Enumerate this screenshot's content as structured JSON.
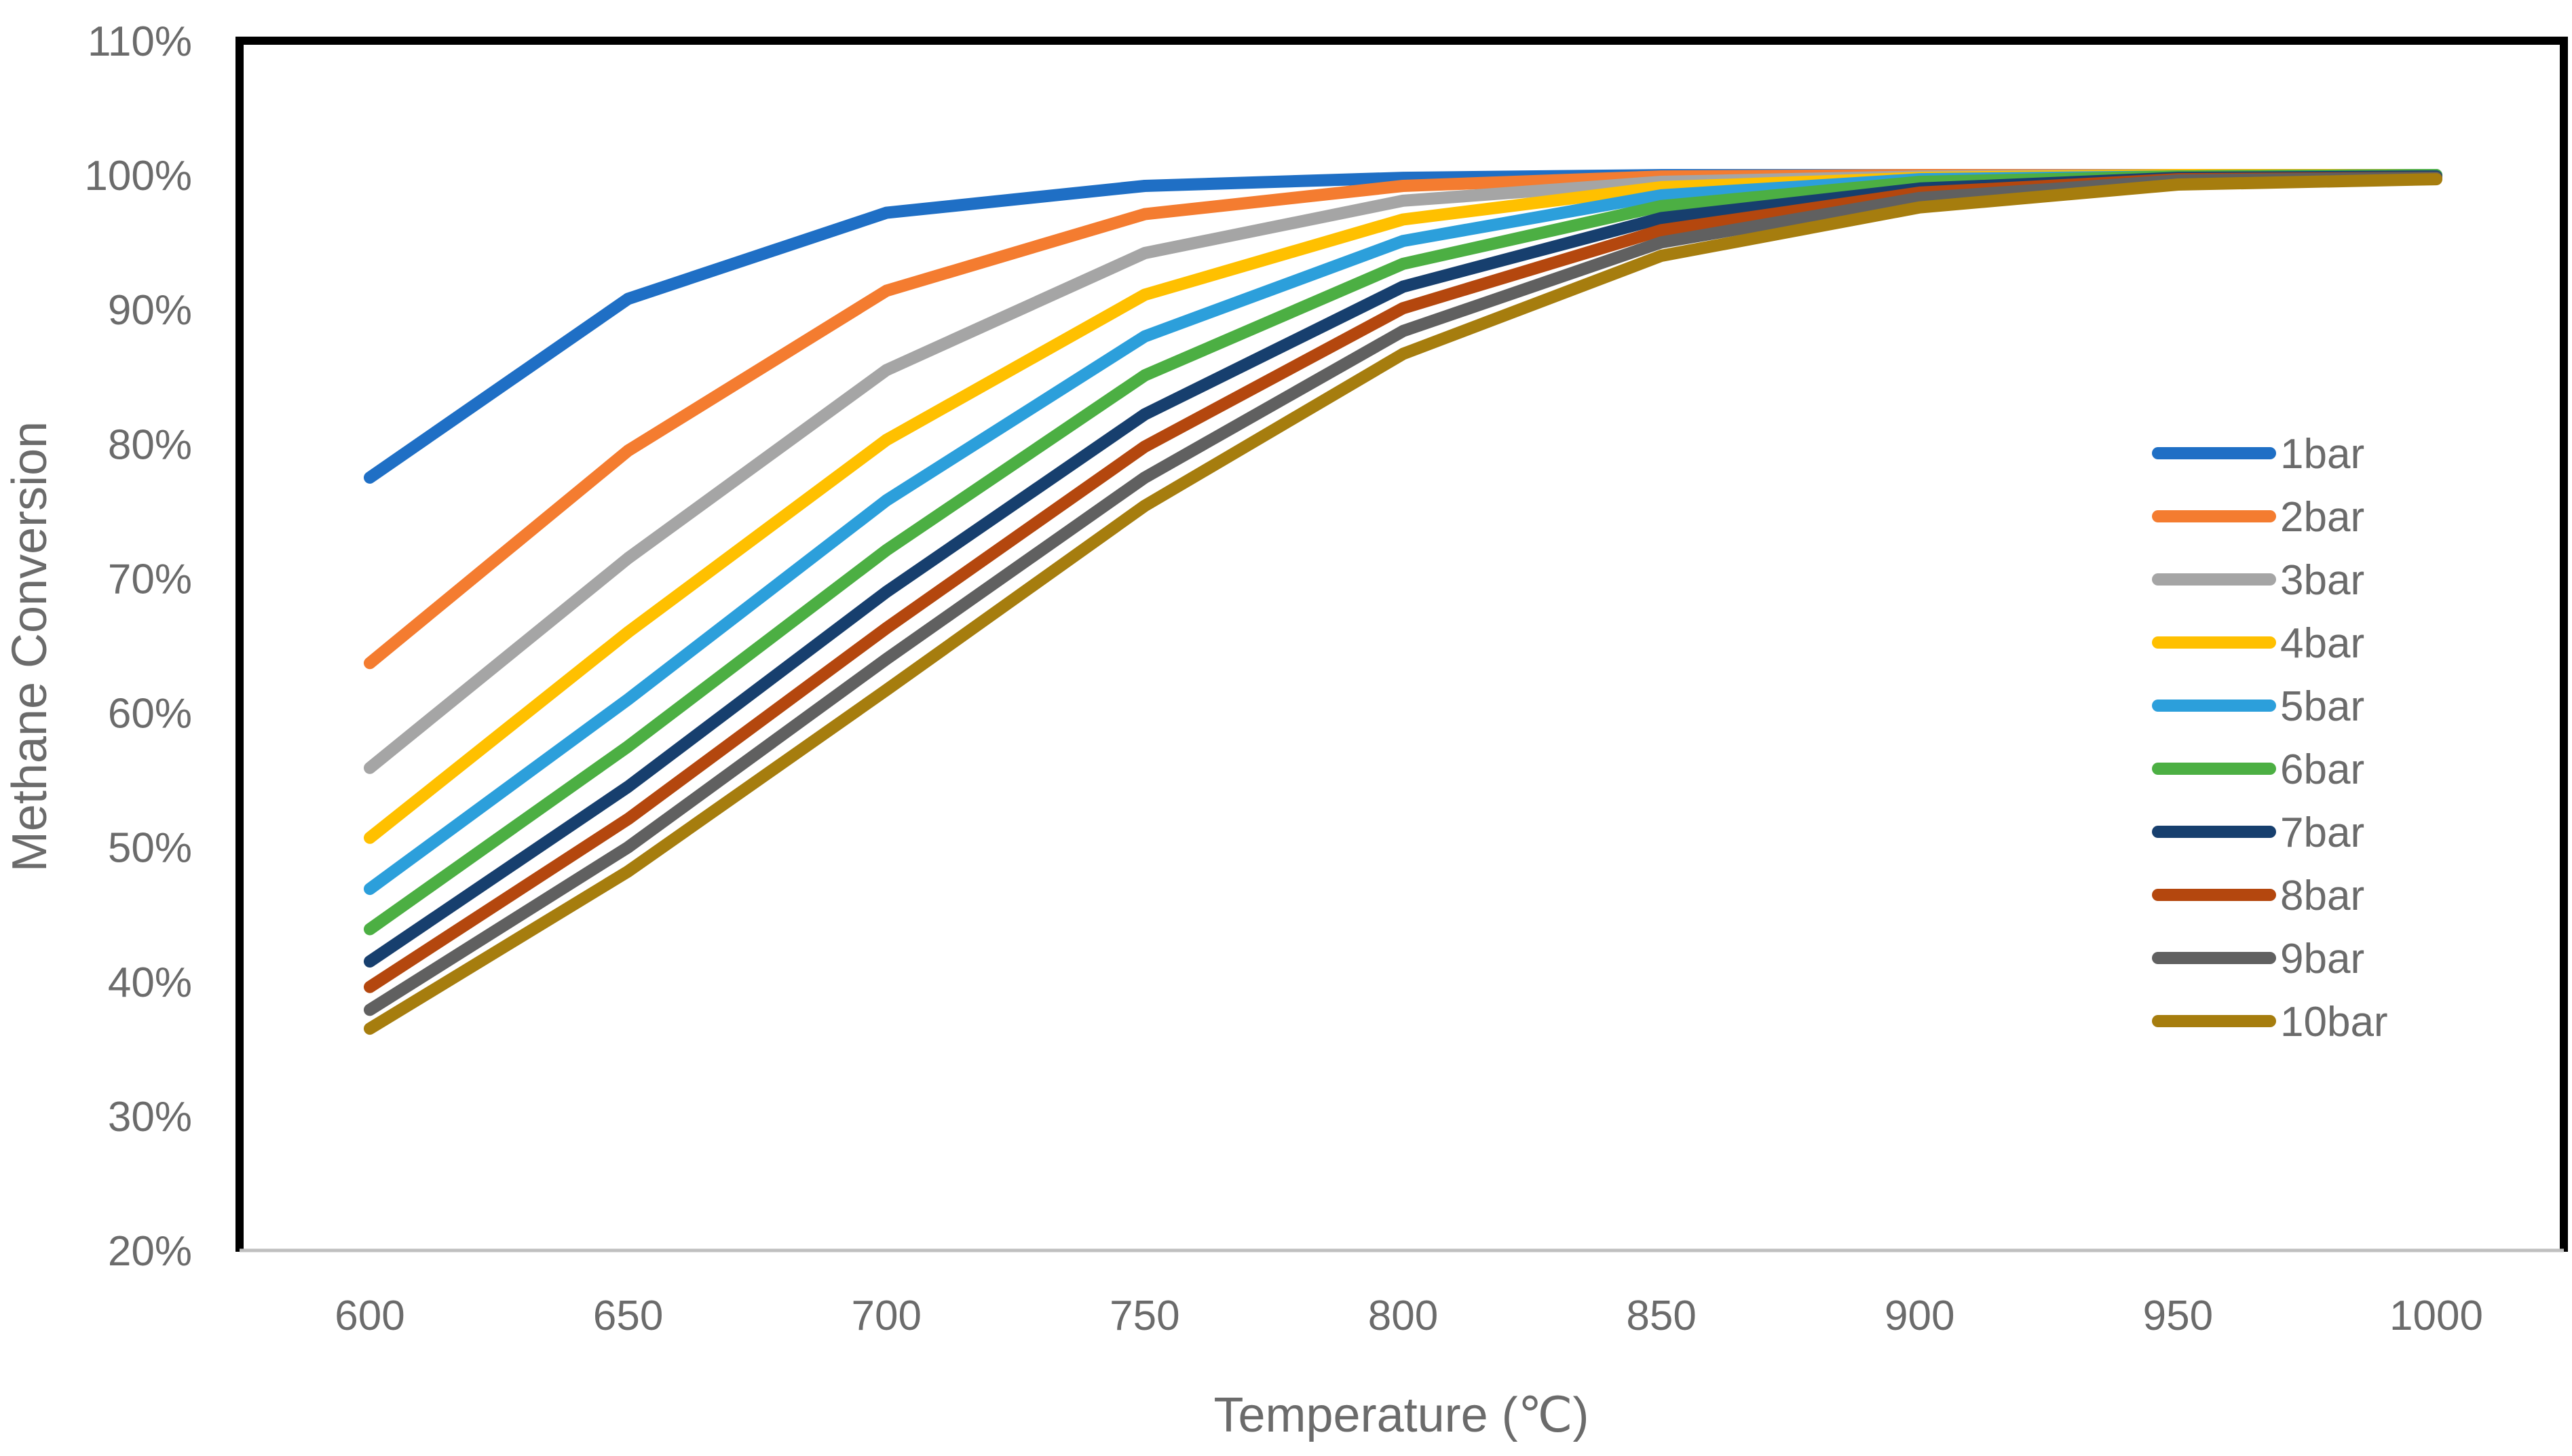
{
  "chart_data": {
    "type": "line",
    "title": "",
    "xlabel": "Temperature (℃)",
    "ylabel": "Methane Conversion",
    "x": [
      600,
      650,
      700,
      750,
      800,
      850,
      900,
      950,
      1000
    ],
    "x_tick_labels": [
      "600",
      "650",
      "700",
      "750",
      "800",
      "850",
      "900",
      "950",
      "1000"
    ],
    "ylim": [
      0.2,
      1.1
    ],
    "y_ticks": [
      0.2,
      0.3,
      0.4,
      0.5,
      0.6,
      0.7,
      0.8,
      0.9,
      1.0,
      1.1
    ],
    "y_tick_labels": [
      "20%",
      "30%",
      "40%",
      "50%",
      "60%",
      "70%",
      "80%",
      "90%",
      "100%",
      "110%"
    ],
    "grid": false,
    "legend_position": "right",
    "series": [
      {
        "name": "1bar",
        "color": "#1F6FC5",
        "values": [
          0.775,
          0.908,
          0.972,
          0.992,
          0.998,
          1.0,
          1.0,
          1.0,
          1.0
        ]
      },
      {
        "name": "2bar",
        "color": "#F47C30",
        "values": [
          0.637,
          0.795,
          0.914,
          0.971,
          0.992,
          0.999,
          1.0,
          1.0,
          1.0
        ]
      },
      {
        "name": "3bar",
        "color": "#A5A5A5",
        "values": [
          0.559,
          0.715,
          0.855,
          0.942,
          0.981,
          0.995,
          0.999,
          1.0,
          1.0
        ]
      },
      {
        "name": "4bar",
        "color": "#FFC000",
        "values": [
          0.507,
          0.66,
          0.803,
          0.911,
          0.967,
          0.991,
          0.998,
          1.0,
          1.0
        ]
      },
      {
        "name": "5bar",
        "color": "#2C9FDB",
        "values": [
          0.469,
          0.61,
          0.758,
          0.88,
          0.951,
          0.985,
          0.997,
          0.999,
          1.0
        ]
      },
      {
        "name": "6bar",
        "color": "#4CAF43",
        "values": [
          0.439,
          0.575,
          0.721,
          0.851,
          0.934,
          0.977,
          0.995,
          0.999,
          1.0
        ]
      },
      {
        "name": "7bar",
        "color": "#173F6E",
        "values": [
          0.415,
          0.545,
          0.69,
          0.822,
          0.917,
          0.968,
          0.99,
          0.998,
          0.999
        ]
      },
      {
        "name": "8bar",
        "color": "#B4470E",
        "values": [
          0.396,
          0.521,
          0.663,
          0.798,
          0.901,
          0.959,
          0.987,
          0.997,
          0.998
        ]
      },
      {
        "name": "9bar",
        "color": "#606060",
        "values": [
          0.379,
          0.5,
          0.64,
          0.775,
          0.884,
          0.95,
          0.983,
          0.996,
          0.998
        ]
      },
      {
        "name": "10bar",
        "color": "#A67D0E",
        "values": [
          0.365,
          0.482,
          0.617,
          0.754,
          0.867,
          0.94,
          0.976,
          0.993,
          0.997
        ]
      }
    ]
  }
}
